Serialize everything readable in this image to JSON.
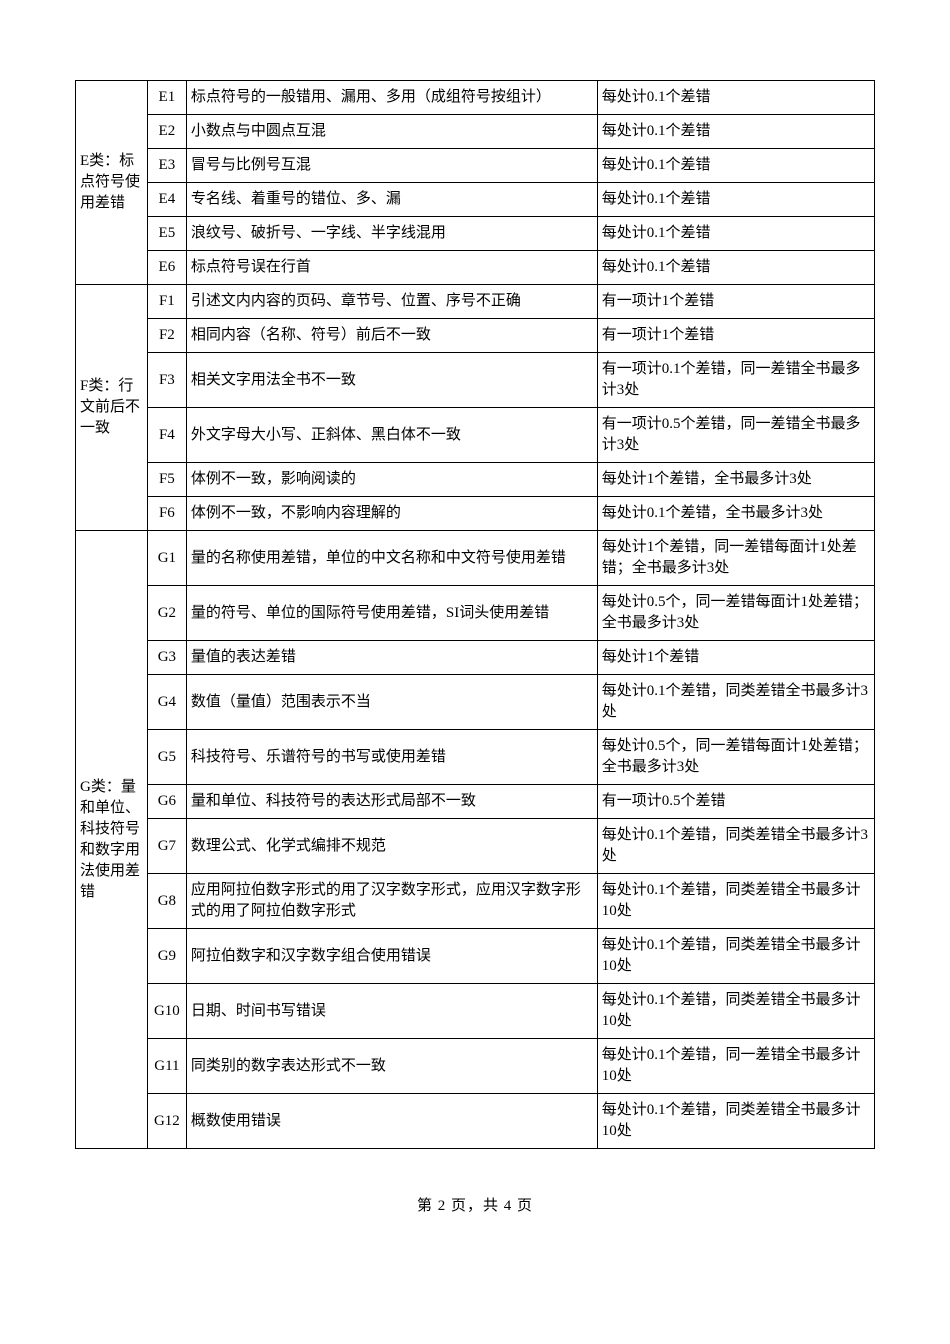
{
  "categories": [
    {
      "name": "E类：标点符号使用差错",
      "rows": [
        {
          "code": "E1",
          "desc": "标点符号的一般错用、漏用、多用（成组符号按组计）",
          "penalty": "每处计0.1个差错"
        },
        {
          "code": "E2",
          "desc": "小数点与中圆点互混",
          "penalty": "每处计0.1个差错"
        },
        {
          "code": "E3",
          "desc": "冒号与比例号互混",
          "penalty": "每处计0.1个差错"
        },
        {
          "code": "E4",
          "desc": "专名线、着重号的错位、多、漏",
          "penalty": "每处计0.1个差错"
        },
        {
          "code": "E5",
          "desc": "浪纹号、破折号、一字线、半字线混用",
          "penalty": "每处计0.1个差错"
        },
        {
          "code": "E6",
          "desc": "标点符号误在行首",
          "penalty": "每处计0.1个差错"
        }
      ]
    },
    {
      "name": "F类：行文前后不一致",
      "rows": [
        {
          "code": "F1",
          "desc": "引述文内内容的页码、章节号、位置、序号不正确",
          "penalty": "有一项计1个差错"
        },
        {
          "code": "F2",
          "desc": "相同内容（名称、符号）前后不一致",
          "penalty": "有一项计1个差错"
        },
        {
          "code": "F3",
          "desc": "相关文字用法全书不一致",
          "penalty": "有一项计0.1个差错，同一差错全书最多计3处"
        },
        {
          "code": "F4",
          "desc": "外文字母大小写、正斜体、黑白体不一致",
          "penalty": "有一项计0.5个差错，同一差错全书最多计3处"
        },
        {
          "code": "F5",
          "desc": "体例不一致，影响阅读的",
          "penalty": "每处计1个差错，全书最多计3处"
        },
        {
          "code": "F6",
          "desc": "体例不一致，不影响内容理解的",
          "penalty": "每处计0.1个差错，全书最多计3处"
        }
      ]
    },
    {
      "name": "G类：量和单位、科技符号和数字用法使用差错",
      "rows": [
        {
          "code": "G1",
          "desc": "量的名称使用差错，单位的中文名称和中文符号使用差错",
          "penalty": "每处计1个差错，同一差错每面计1处差错；全书最多计3处"
        },
        {
          "code": "G2",
          "desc": "量的符号、单位的国际符号使用差错，SI词头使用差错",
          "penalty": "每处计0.5个，同一差错每面计1处差错；全书最多计3处"
        },
        {
          "code": "G3",
          "desc": "量值的表达差错",
          "penalty": "每处计1个差错"
        },
        {
          "code": "G4",
          "desc": "数值（量值）范围表示不当",
          "penalty": "每处计0.1个差错，同类差错全书最多计3处"
        },
        {
          "code": "G5",
          "desc": "科技符号、乐谱符号的书写或使用差错",
          "penalty": "每处计0.5个，同一差错每面计1处差错；全书最多计3处"
        },
        {
          "code": "G6",
          "desc": "量和单位、科技符号的表达形式局部不一致",
          "penalty": "有一项计0.5个差错"
        },
        {
          "code": "G7",
          "desc": "数理公式、化学式编排不规范",
          "penalty": "每处计0.1个差错，同类差错全书最多计3处"
        },
        {
          "code": "G8",
          "desc": "应用阿拉伯数字形式的用了汉字数字形式，应用汉字数字形式的用了阿拉伯数字形式",
          "penalty": "每处计0.1个差错，同类差错全书最多计10处"
        },
        {
          "code": "G9",
          "desc": "阿拉伯数字和汉字数字组合使用错误",
          "penalty": "每处计0.1个差错，同类差错全书最多计10处"
        },
        {
          "code": "G10",
          "desc": "日期、时间书写错误",
          "penalty": "每处计0.1个差错，同类差错全书最多计10处"
        },
        {
          "code": "G11",
          "desc": "同类别的数字表达形式不一致",
          "penalty": "每处计0.1个差错，同一差错全书最多计10处"
        },
        {
          "code": "G12",
          "desc": "概数使用错误",
          "penalty": "每处计0.1个差错，同类差错全书最多计10处"
        }
      ]
    }
  ],
  "footer": "第 2 页，共 4 页"
}
